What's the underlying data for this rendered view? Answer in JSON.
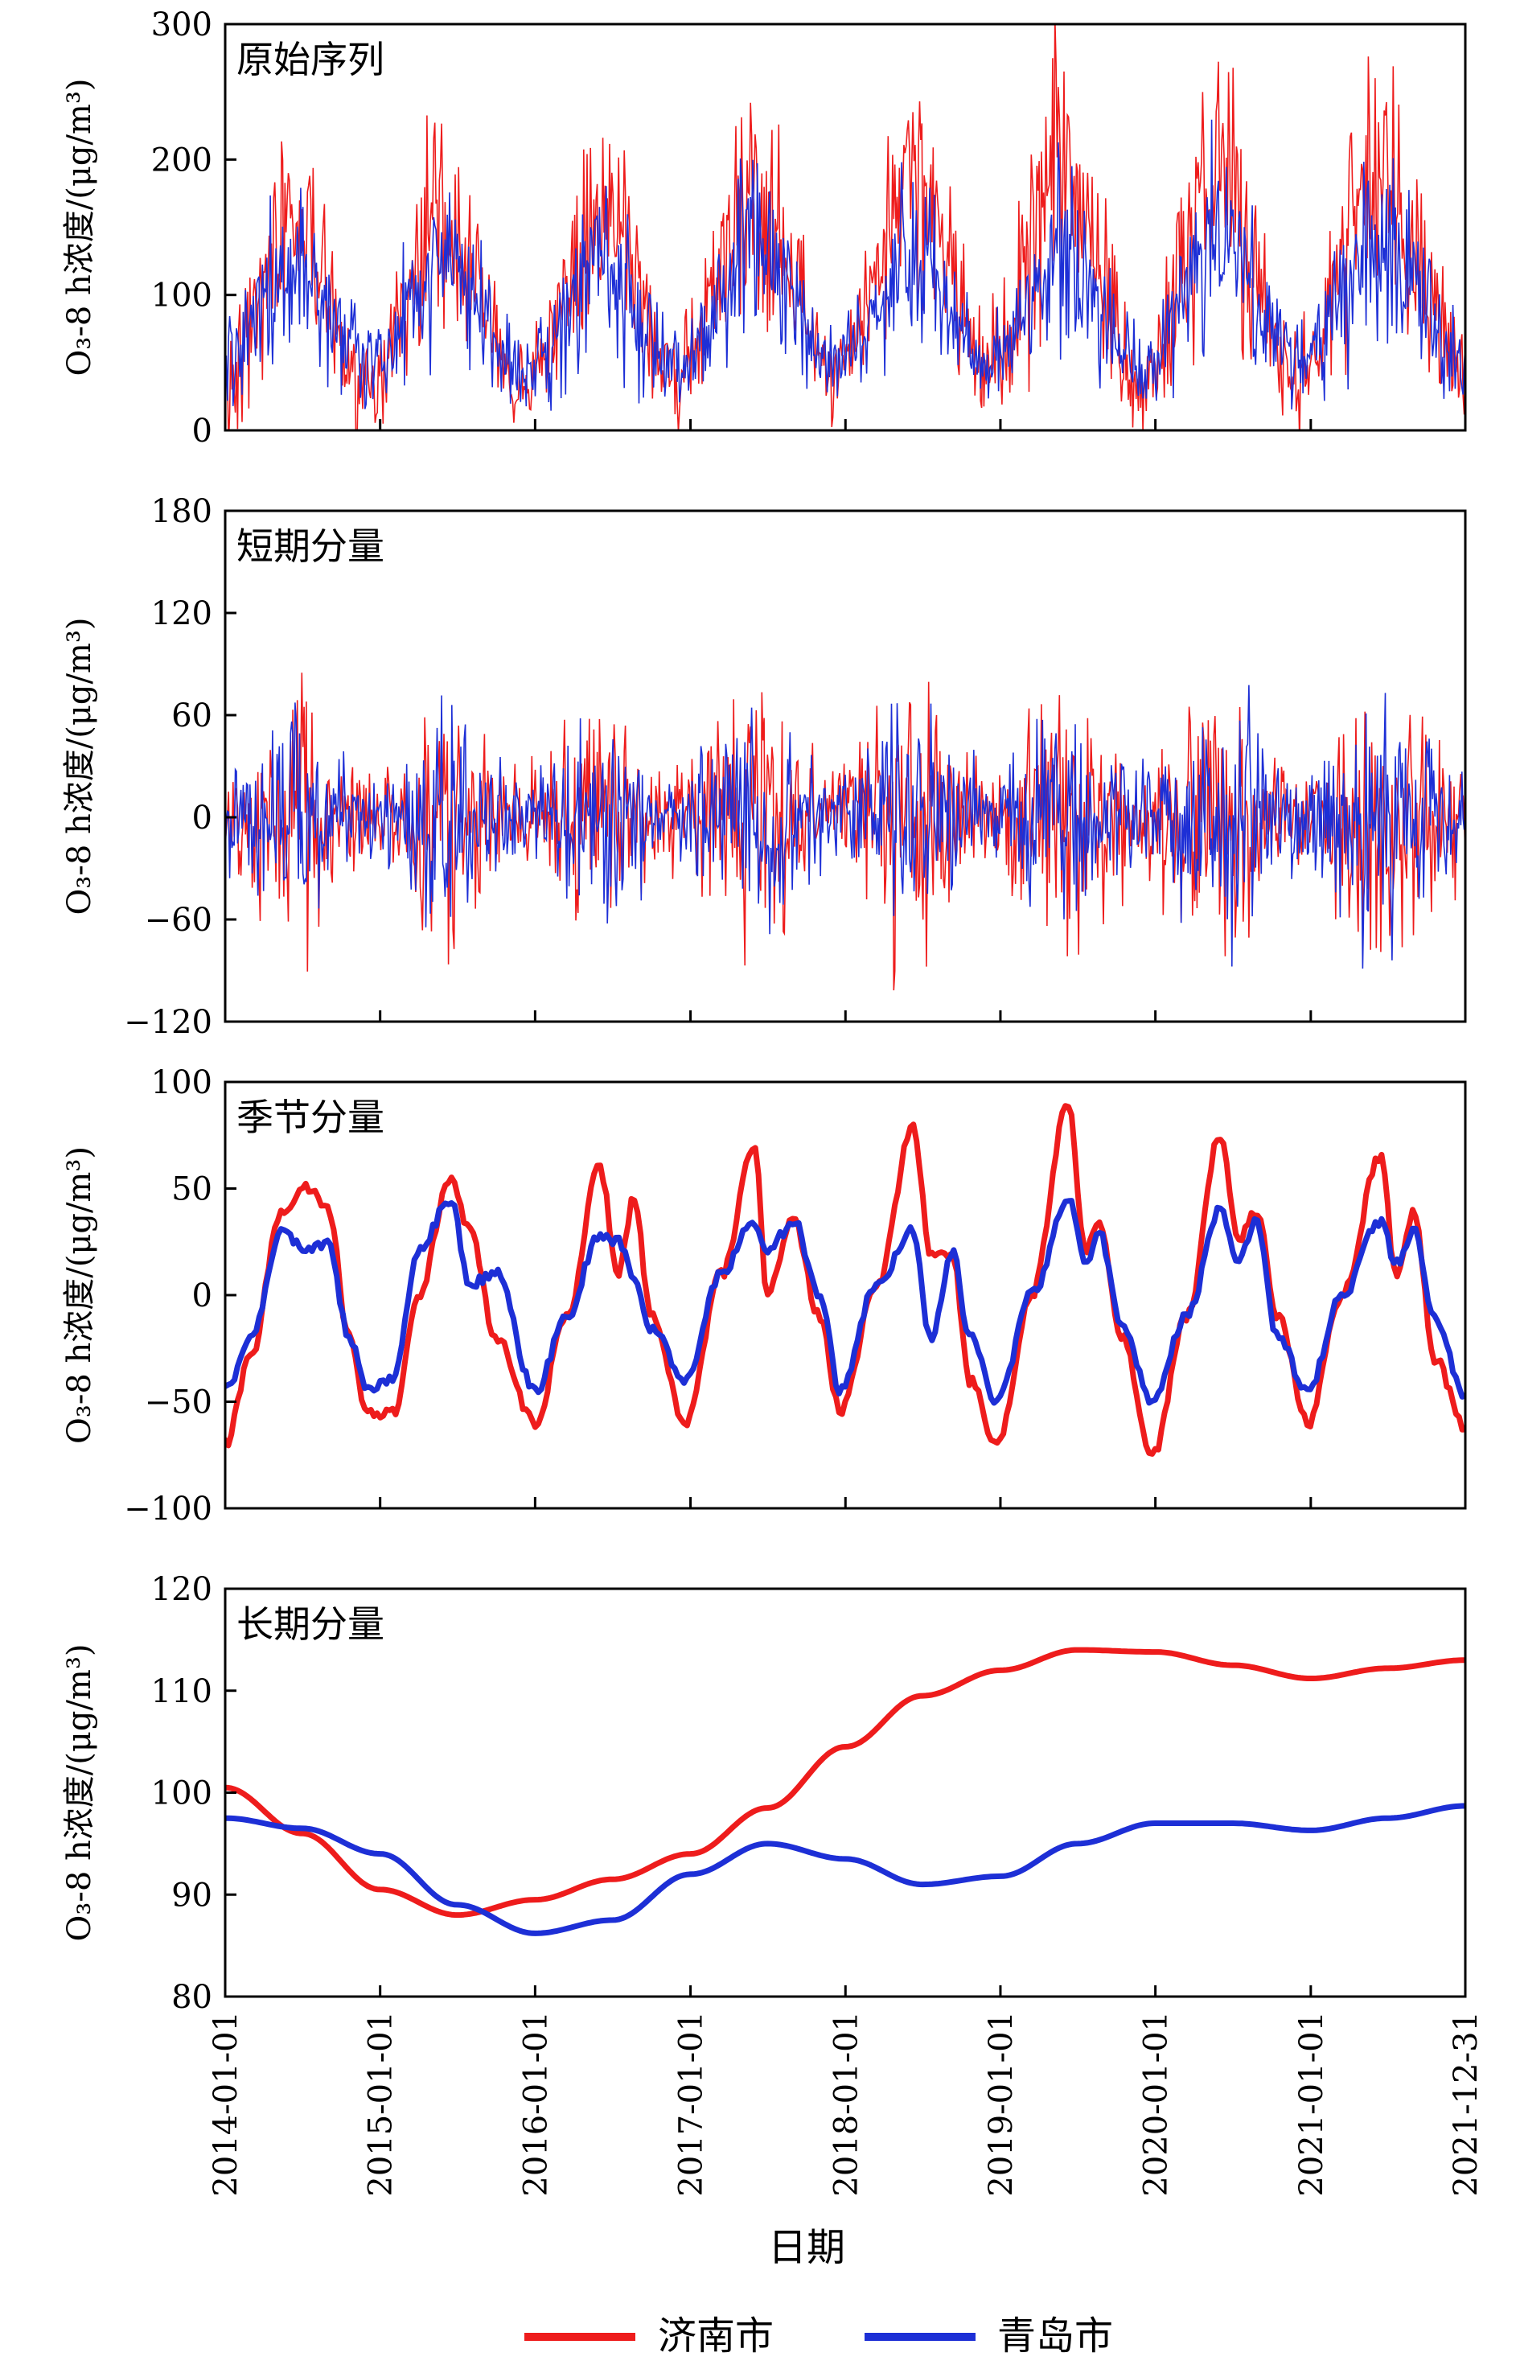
{
  "chart_data": {
    "type": "line",
    "x_axis": {
      "label": "日期",
      "start": "2014-01-01",
      "end": "2021-12-31",
      "tick_labels": [
        "2014-01-01",
        "2015-01-01",
        "2016-01-01",
        "2017-01-01",
        "2018-01-01",
        "2019-01-01",
        "2020-01-01",
        "2021-01-01",
        "2021-12-31"
      ]
    },
    "legend": {
      "placement": "bottom-center",
      "entries": [
        {
          "name": "济南市",
          "color": "#ee1c1c"
        },
        {
          "name": "青岛市",
          "color": "#1d2fd6"
        }
      ]
    },
    "panels": [
      {
        "title": "原始序列",
        "ylabel": "O₃-8 h浓度/(μg/m³)",
        "ylim": [
          0,
          300
        ],
        "yticks": [
          "0",
          "100",
          "200",
          "300"
        ],
        "style": "noisy",
        "series": [
          {
            "name": "济南市",
            "color": "#ee1c1c",
            "x": [
              "2014-01-01",
              "2014-06-01",
              "2014-12-01",
              "2015-06-01",
              "2015-12-01",
              "2016-06-01",
              "2016-12-01",
              "2017-06-01",
              "2017-12-01",
              "2018-06-01",
              "2018-12-01",
              "2019-06-01",
              "2019-12-01",
              "2020-06-01",
              "2020-12-01",
              "2021-06-01",
              "2021-12-31"
            ],
            "y": [
              40,
              150,
              35,
              160,
              30,
              150,
              40,
              175,
              45,
              180,
              45,
              185,
              40,
              185,
              40,
              185,
              50
            ],
            "spread": [
              40,
              70,
              30,
              70,
              30,
              70,
              35,
              75,
              35,
              75,
              35,
              80,
              35,
              80,
              35,
              80,
              35
            ]
          },
          {
            "name": "青岛市",
            "color": "#1d2fd6",
            "x": [
              "2014-01-01",
              "2014-06-01",
              "2014-12-01",
              "2015-06-01",
              "2015-12-01",
              "2016-06-01",
              "2016-12-01",
              "2017-06-01",
              "2017-12-01",
              "2018-06-01",
              "2018-12-01",
              "2019-06-01",
              "2019-12-01",
              "2020-06-01",
              "2020-12-01",
              "2021-06-01",
              "2021-12-31"
            ],
            "y": [
              50,
              125,
              50,
              130,
              45,
              115,
              50,
              135,
              50,
              125,
              50,
              130,
              45,
              135,
              50,
              135,
              55
            ],
            "spread": [
              30,
              55,
              25,
              55,
              25,
              55,
              25,
              60,
              25,
              60,
              25,
              60,
              25,
              60,
              25,
              60,
              25
            ]
          }
        ]
      },
      {
        "title": "短期分量",
        "ylabel": "O₃-8 h浓度/(μg/m³)",
        "ylim": [
          -120,
          180
        ],
        "yticks": [
          "−120",
          "−60",
          "0",
          "60",
          "120",
          "180"
        ],
        "style": "noisy",
        "series": [
          {
            "name": "济南市",
            "color": "#ee1c1c",
            "x": [
              "2014-01-01",
              "2014-06-01",
              "2014-12-01",
              "2015-06-01",
              "2015-12-01",
              "2016-06-01",
              "2016-12-01",
              "2017-06-01",
              "2017-12-01",
              "2018-06-01",
              "2018-12-01",
              "2019-06-01",
              "2019-12-01",
              "2020-06-01",
              "2020-12-01",
              "2021-06-01",
              "2021-12-31"
            ],
            "y": [
              0,
              0,
              0,
              0,
              0,
              0,
              0,
              0,
              0,
              0,
              0,
              0,
              0,
              0,
              0,
              0,
              0
            ],
            "spread": [
              30,
              65,
              25,
              60,
              25,
              60,
              25,
              65,
              25,
              70,
              30,
              70,
              30,
              70,
              30,
              70,
              30
            ]
          },
          {
            "name": "青岛市",
            "color": "#1d2fd6",
            "x": [
              "2014-01-01",
              "2014-06-01",
              "2014-12-01",
              "2015-06-01",
              "2015-12-01",
              "2016-06-01",
              "2016-12-01",
              "2017-06-01",
              "2017-12-01",
              "2018-06-01",
              "2018-12-01",
              "2019-06-01",
              "2019-12-01",
              "2020-06-01",
              "2020-12-01",
              "2021-06-01",
              "2021-12-31"
            ],
            "y": [
              0,
              0,
              0,
              0,
              0,
              0,
              0,
              0,
              0,
              0,
              0,
              0,
              0,
              0,
              0,
              0,
              0
            ],
            "spread": [
              25,
              55,
              20,
              55,
              20,
              50,
              20,
              60,
              20,
              60,
              25,
              60,
              25,
              65,
              25,
              60,
              25
            ]
          }
        ]
      },
      {
        "title": "季节分量",
        "ylabel": "O₃-8 h浓度/(μg/m³)",
        "ylim": [
          -100,
          100
        ],
        "yticks": [
          "−100",
          "−50",
          "0",
          "50",
          "100"
        ],
        "style": "smooth",
        "series": [
          {
            "name": "济南市",
            "color": "#ee1c1c",
            "x": [
              "2014-01-01",
              "2014-03-01",
              "2014-05-15",
              "2014-07-15",
              "2014-09-01",
              "2014-10-20",
              "2014-12-01",
              "2015-02-01",
              "2015-04-01",
              "2015-06-15",
              "2015-08-01",
              "2015-10-01",
              "2016-01-01",
              "2016-03-15",
              "2016-06-01",
              "2016-07-15",
              "2016-08-20",
              "2016-10-01",
              "2016-12-20",
              "2017-03-15",
              "2017-06-01",
              "2017-07-01",
              "2017-09-01",
              "2017-11-01",
              "2017-12-20",
              "2018-03-15",
              "2018-06-10",
              "2018-07-20",
              "2018-09-10",
              "2018-10-20",
              "2018-12-25",
              "2019-03-15",
              "2019-06-10",
              "2019-07-20",
              "2019-08-20",
              "2019-10-15",
              "2019-12-25",
              "2020-03-15",
              "2020-06-01",
              "2020-07-15",
              "2020-08-25",
              "2020-10-15",
              "2020-12-25",
              "2021-03-15",
              "2021-06-15",
              "2021-07-20",
              "2021-09-01",
              "2021-10-20",
              "2021-12-31"
            ],
            "y": [
              -70,
              -30,
              40,
              50,
              40,
              -20,
              -55,
              -55,
              0,
              55,
              30,
              -20,
              -60,
              -10,
              60,
              10,
              45,
              -10,
              -60,
              10,
              70,
              0,
              35,
              -10,
              -55,
              5,
              78,
              20,
              20,
              -40,
              -70,
              0,
              90,
              20,
              35,
              -20,
              -75,
              -10,
              75,
              25,
              40,
              -10,
              -60,
              0,
              65,
              10,
              40,
              -30,
              -62
            ]
          },
          {
            "name": "青岛市",
            "color": "#1d2fd6",
            "x": [
              "2014-01-01",
              "2014-03-01",
              "2014-05-15",
              "2014-07-15",
              "2014-09-01",
              "2014-10-20",
              "2014-12-01",
              "2015-02-01",
              "2015-04-01",
              "2015-06-15",
              "2015-08-01",
              "2015-10-01",
              "2016-01-01",
              "2016-03-15",
              "2016-06-01",
              "2016-07-15",
              "2016-08-20",
              "2016-10-01",
              "2016-12-20",
              "2017-03-15",
              "2017-06-01",
              "2017-07-01",
              "2017-09-01",
              "2017-11-01",
              "2017-12-20",
              "2018-03-15",
              "2018-06-10",
              "2018-07-20",
              "2018-09-10",
              "2018-10-20",
              "2018-12-25",
              "2019-03-15",
              "2019-06-10",
              "2019-07-20",
              "2019-08-20",
              "2019-10-15",
              "2019-12-25",
              "2020-03-15",
              "2020-06-01",
              "2020-07-15",
              "2020-08-25",
              "2020-10-15",
              "2020-12-25",
              "2021-03-15",
              "2021-06-15",
              "2021-07-20",
              "2021-09-01",
              "2021-10-20",
              "2021-12-31"
            ],
            "y": [
              -45,
              -20,
              30,
              20,
              25,
              -20,
              -45,
              -40,
              20,
              45,
              5,
              10,
              -45,
              -10,
              28,
              25,
              10,
              -15,
              -40,
              10,
              35,
              20,
              35,
              0,
              -45,
              5,
              30,
              -20,
              20,
              -20,
              -50,
              0,
              45,
              15,
              30,
              -15,
              -50,
              -10,
              40,
              15,
              35,
              -20,
              -45,
              0,
              35,
              15,
              30,
              -10,
              -48
            ]
          }
        ]
      },
      {
        "title": "长期分量",
        "ylabel": "O₃-8 h浓度/(μg/m³)",
        "ylim": [
          80,
          120
        ],
        "yticks": [
          "80",
          "90",
          "100",
          "110",
          "120"
        ],
        "style": "smooth",
        "series": [
          {
            "name": "济南市",
            "color": "#ee1c1c",
            "x": [
              "2014-01-01",
              "2014-07-01",
              "2015-01-01",
              "2015-07-01",
              "2016-01-01",
              "2016-07-01",
              "2017-01-01",
              "2017-07-01",
              "2018-01-01",
              "2018-07-01",
              "2019-01-01",
              "2019-07-01",
              "2020-01-01",
              "2020-07-01",
              "2021-01-01",
              "2021-07-01",
              "2021-12-31"
            ],
            "y": [
              100.5,
              96,
              90.5,
              88,
              89.5,
              91.5,
              94,
              98.5,
              104.5,
              109.5,
              112,
              114,
              113.8,
              112.5,
              111.2,
              112.2,
              113
            ]
          },
          {
            "name": "青岛市",
            "color": "#1d2fd6",
            "x": [
              "2014-01-01",
              "2014-07-01",
              "2015-01-01",
              "2015-07-01",
              "2016-01-01",
              "2016-07-01",
              "2017-01-01",
              "2017-07-01",
              "2018-01-01",
              "2018-07-01",
              "2019-01-01",
              "2019-07-01",
              "2020-01-01",
              "2020-07-01",
              "2021-01-01",
              "2021-07-01",
              "2021-12-31"
            ],
            "y": [
              97.5,
              96.5,
              94,
              89,
              86.2,
              87.5,
              92,
              95,
              93.5,
              91,
              91.8,
              95,
              97,
              97,
              96.3,
              97.5,
              98.7
            ]
          }
        ]
      }
    ]
  }
}
